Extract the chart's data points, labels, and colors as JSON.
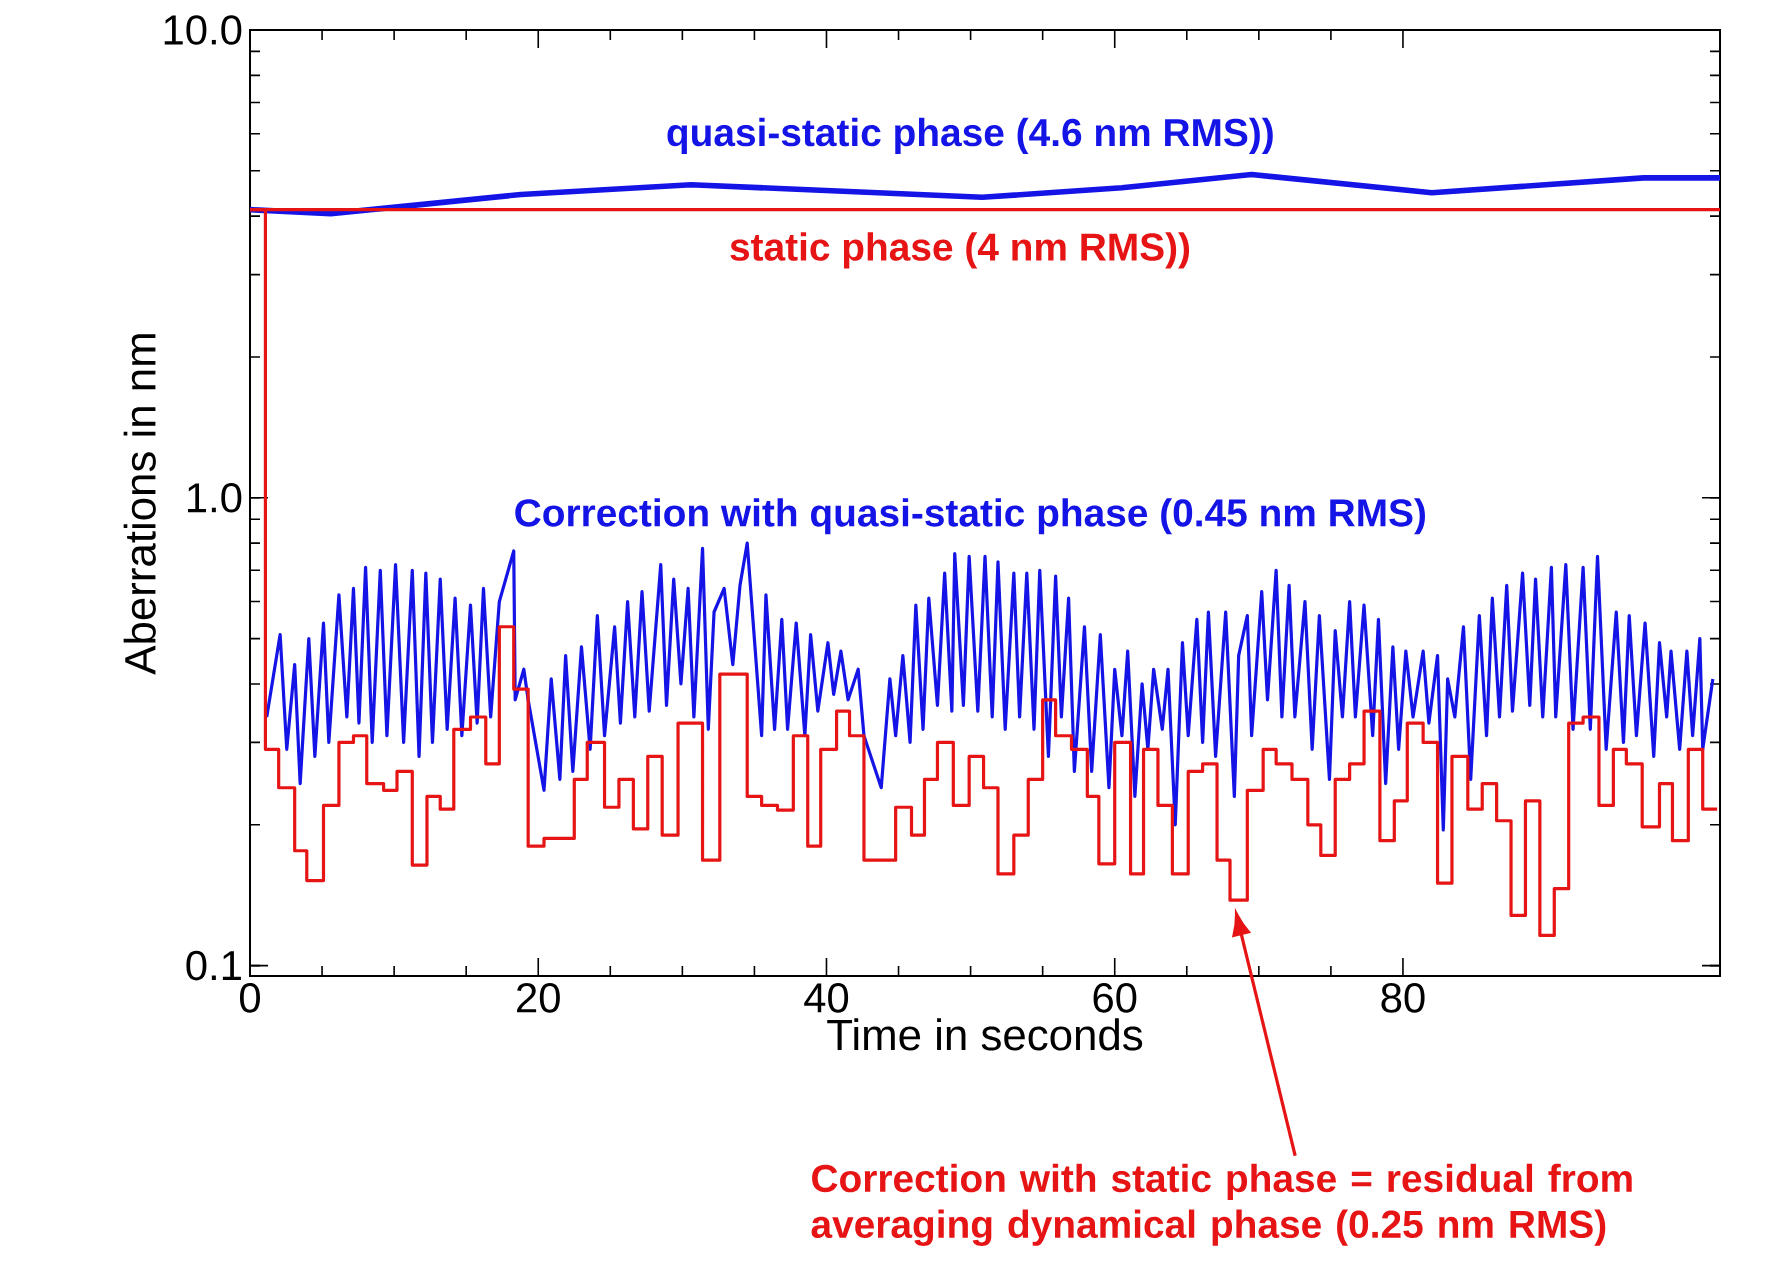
{
  "chart_data": {
    "type": "line",
    "xlabel": "Time in seconds",
    "ylabel": "Aberrations in nm",
    "log": "y",
    "xlim": [
      0,
      102
    ],
    "ylim": [
      0.095,
      10
    ],
    "xticks": [
      0,
      20,
      40,
      60,
      80
    ],
    "yticks": [
      {
        "value": 0.1,
        "label": "0.1"
      },
      {
        "value": 1,
        "label": "1.0"
      },
      {
        "value": 10,
        "label": "10.0"
      }
    ],
    "series": [
      {
        "name": "quasi-static phase (4.6 nm RMS))",
        "color": "#1414e6",
        "x": [
          0,
          5.6,
          18.8,
          30.6,
          50.8,
          60.5,
          69.5,
          82,
          96.7,
          102
        ],
        "values": [
          4.13,
          4.05,
          4.45,
          4.67,
          4.39,
          4.6,
          4.91,
          4.49,
          4.83,
          4.83
        ]
      },
      {
        "name": "static phase (4 nm RMS))",
        "color": "#e61414",
        "x": [
          0,
          102
        ],
        "values": [
          4.13,
          4.13
        ]
      },
      {
        "name": "Correction with quasi-static phase (0.45 nm RMS)",
        "color": "#1414e6",
        "x": [
          1.16,
          2.09,
          2.55,
          3.1,
          3.48,
          4.08,
          4.5,
          5.1,
          5.47,
          6.17,
          6.72,
          7.18,
          7.56,
          8.02,
          8.48,
          9.04,
          9.5,
          10.1,
          10.66,
          11.26,
          11.73,
          12.2,
          12.66,
          13.2,
          13.68,
          14.23,
          14.7,
          15.3,
          15.76,
          16.2,
          16.7,
          17.3,
          18.3,
          18.4,
          19.0,
          19.3,
          20.4,
          20.9,
          21.5,
          21.9,
          22.4,
          23.0,
          23.6,
          24.1,
          24.6,
          25.3,
          25.7,
          26.2,
          26.7,
          27.2,
          27.7,
          28.5,
          28.9,
          29.4,
          29.9,
          30.4,
          30.8,
          31.4,
          31.8,
          32.2,
          32.9,
          33.5,
          34.0,
          34.5,
          35.5,
          35.8,
          36.4,
          36.9,
          37.3,
          37.9,
          38.5,
          38.9,
          39.4,
          40.1,
          40.5,
          41.0,
          41.5,
          42.2,
          42.6,
          43.8,
          44.4,
          44.8,
          45.3,
          45.8,
          46.2,
          46.7,
          47.1,
          47.7,
          48.2,
          48.7,
          48.9,
          49.5,
          49.9,
          50.5,
          51.0,
          51.5,
          51.9,
          52.4,
          53.0,
          53.4,
          53.9,
          54.4,
          54.8,
          55.4,
          55.9,
          56.3,
          56.8,
          57.2,
          57.9,
          58.4,
          59.0,
          59.6,
          60.0,
          60.5,
          60.9,
          61.4,
          61.9,
          62.3,
          62.7,
          63.3,
          63.7,
          64.2,
          64.7,
          65.1,
          65.7,
          66.1,
          66.5,
          67.0,
          67.7,
          68.3,
          68.6,
          69.2,
          69.5,
          70.2,
          70.6,
          71.2,
          71.6,
          72.1,
          72.5,
          73.2,
          73.7,
          74.2,
          74.9,
          75.3,
          75.8,
          76.3,
          76.7,
          77.3,
          77.9,
          78.3,
          78.8,
          79.3,
          79.7,
          80.2,
          80.7,
          81.4,
          81.8,
          82.4,
          82.8,
          83.1,
          83.6,
          84.2,
          84.7,
          85.3,
          85.8,
          86.2,
          86.7,
          87.2,
          87.6,
          88.3,
          88.8,
          89.2,
          89.7,
          90.3,
          90.6,
          91.3,
          91.8,
          92.5,
          93.0,
          93.5,
          94.1,
          94.8,
          95.3,
          95.7,
          96.2,
          96.8,
          97.4,
          97.8,
          98.3,
          98.6,
          99.2,
          99.7,
          100.1,
          100.6,
          100.8,
          101.5
        ],
        "values": [
          0.34,
          0.51,
          0.29,
          0.44,
          0.245,
          0.5,
          0.28,
          0.54,
          0.3,
          0.62,
          0.34,
          0.64,
          0.33,
          0.71,
          0.3,
          0.7,
          0.31,
          0.72,
          0.3,
          0.7,
          0.28,
          0.69,
          0.3,
          0.67,
          0.32,
          0.61,
          0.31,
          0.59,
          0.33,
          0.64,
          0.34,
          0.6,
          0.77,
          0.37,
          0.43,
          0.37,
          0.237,
          0.41,
          0.25,
          0.46,
          0.26,
          0.48,
          0.29,
          0.56,
          0.31,
          0.53,
          0.33,
          0.6,
          0.34,
          0.63,
          0.35,
          0.72,
          0.36,
          0.67,
          0.4,
          0.64,
          0.34,
          0.78,
          0.32,
          0.57,
          0.64,
          0.44,
          0.65,
          0.8,
          0.31,
          0.62,
          0.32,
          0.55,
          0.32,
          0.54,
          0.31,
          0.51,
          0.35,
          0.49,
          0.38,
          0.47,
          0.37,
          0.43,
          0.31,
          0.24,
          0.41,
          0.31,
          0.46,
          0.3,
          0.59,
          0.32,
          0.61,
          0.36,
          0.69,
          0.35,
          0.76,
          0.36,
          0.75,
          0.35,
          0.75,
          0.34,
          0.73,
          0.32,
          0.69,
          0.34,
          0.69,
          0.32,
          0.7,
          0.28,
          0.68,
          0.34,
          0.61,
          0.26,
          0.53,
          0.26,
          0.51,
          0.24,
          0.43,
          0.31,
          0.47,
          0.23,
          0.4,
          0.29,
          0.43,
          0.32,
          0.43,
          0.2,
          0.49,
          0.31,
          0.55,
          0.3,
          0.57,
          0.28,
          0.57,
          0.23,
          0.46,
          0.56,
          0.31,
          0.63,
          0.37,
          0.7,
          0.34,
          0.65,
          0.34,
          0.6,
          0.29,
          0.56,
          0.25,
          0.52,
          0.34,
          0.6,
          0.34,
          0.59,
          0.31,
          0.55,
          0.245,
          0.48,
          0.29,
          0.47,
          0.34,
          0.47,
          0.33,
          0.46,
          0.195,
          0.41,
          0.34,
          0.53,
          0.25,
          0.56,
          0.31,
          0.61,
          0.34,
          0.65,
          0.35,
          0.69,
          0.36,
          0.67,
          0.34,
          0.71,
          0.34,
          0.72,
          0.32,
          0.71,
          0.32,
          0.75,
          0.29,
          0.57,
          0.3,
          0.56,
          0.31,
          0.54,
          0.28,
          0.49,
          0.34,
          0.47,
          0.29,
          0.47,
          0.31,
          0.5,
          0.29,
          0.41
        ]
      },
      {
        "name": "Correction with static phase = residual from averaging dynamical phase (0.25 nm RMS)",
        "type": "step",
        "color": "#e61414",
        "x": [
          0,
          1.07,
          1.99,
          3.1,
          3.94,
          5.1,
          6.17,
          7.18,
          8.1,
          9.27,
          10.2,
          11.26,
          12.28,
          13.2,
          14.14,
          15.3,
          16.36,
          17.3,
          18.3,
          19.3,
          20.4,
          22.5,
          23.4,
          24.6,
          25.6,
          26.6,
          27.6,
          28.6,
          29.7,
          31.4,
          32.6,
          34.5,
          35.5,
          36.6,
          37.7,
          38.7,
          39.6,
          40.7,
          41.6,
          42.6,
          44.8,
          45.9,
          46.8,
          47.7,
          48.8,
          49.9,
          50.9,
          51.9,
          53.0,
          54.0,
          55.0,
          55.9,
          57.0,
          58.1,
          58.9,
          60.0,
          61.1,
          62.0,
          63.0,
          64.0,
          65.1,
          66.1,
          67.1,
          68.0,
          69.2,
          70.3,
          71.2,
          72.3,
          73.4,
          74.3,
          75.3,
          76.3,
          77.3,
          78.4,
          79.4,
          80.3,
          81.4,
          82.4,
          83.4,
          84.5,
          85.5,
          86.5,
          87.5,
          88.5,
          89.5,
          90.5,
          91.5,
          92.5,
          93.6,
          94.6,
          95.5,
          96.6,
          97.8,
          98.7,
          99.8,
          100.8,
          101.8
        ],
        "values": [
          4.13,
          0.29,
          0.24,
          0.176,
          0.152,
          0.22,
          0.3,
          0.31,
          0.245,
          0.237,
          0.26,
          0.164,
          0.23,
          0.216,
          0.32,
          0.34,
          0.27,
          0.53,
          0.39,
          0.18,
          0.187,
          0.25,
          0.3,
          0.218,
          0.25,
          0.196,
          0.28,
          0.19,
          0.33,
          0.168,
          0.42,
          0.23,
          0.22,
          0.215,
          0.31,
          0.18,
          0.29,
          0.35,
          0.31,
          0.168,
          0.218,
          0.19,
          0.25,
          0.3,
          0.22,
          0.28,
          0.24,
          0.157,
          0.19,
          0.25,
          0.37,
          0.31,
          0.29,
          0.23,
          0.165,
          0.3,
          0.157,
          0.29,
          0.22,
          0.157,
          0.26,
          0.27,
          0.168,
          0.138,
          0.237,
          0.29,
          0.27,
          0.25,
          0.2,
          0.172,
          0.25,
          0.27,
          0.35,
          0.185,
          0.225,
          0.33,
          0.3,
          0.15,
          0.28,
          0.216,
          0.245,
          0.204,
          0.128,
          0.225,
          0.116,
          0.146,
          0.33,
          0.34,
          0.22,
          0.29,
          0.27,
          0.198,
          0.245,
          0.185,
          0.29,
          0.216,
          0.216
        ]
      }
    ]
  }
}
